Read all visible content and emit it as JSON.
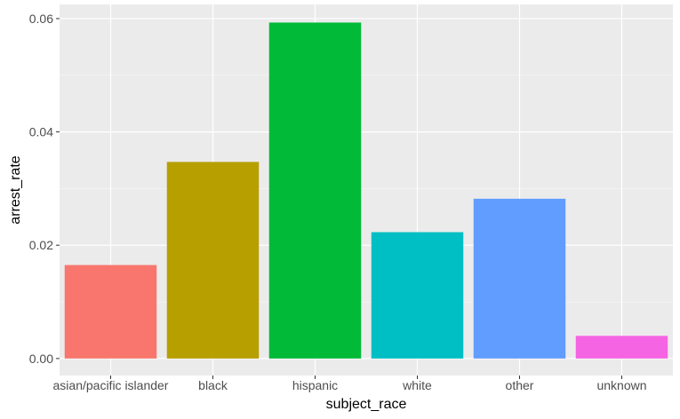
{
  "chart_data": {
    "type": "bar",
    "categories": [
      "asian/pacific islander",
      "black",
      "hispanic",
      "white",
      "other",
      "unknown"
    ],
    "values": [
      0.0165,
      0.0347,
      0.0593,
      0.0223,
      0.0282,
      0.004
    ],
    "colors": [
      "#F8766D",
      "#B79F00",
      "#00BA38",
      "#00BFC4",
      "#619CFF",
      "#F564E3"
    ],
    "xlabel": "subject_race",
    "ylabel": "arrest_rate",
    "ylim": [
      -0.003,
      0.0625
    ],
    "yticks": [
      0.0,
      0.02,
      0.04,
      0.06
    ],
    "ytick_labels": [
      "0.00",
      "0.02",
      "0.04",
      "0.06"
    ],
    "grid": true,
    "legend": "none"
  }
}
